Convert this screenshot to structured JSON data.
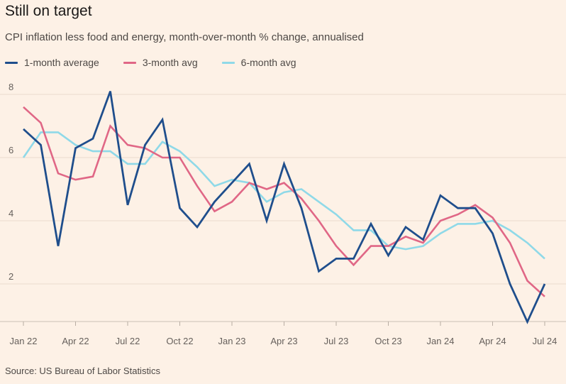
{
  "title": "Still on target",
  "subtitle": "CPI inflation less food and energy, month-over-month % change, annualised",
  "source": "Source: US Bureau of Labor Statistics",
  "chart_data": {
    "type": "line",
    "title": "Still on target",
    "subtitle": "CPI inflation less food and energy, month-over-month % change, annualised",
    "xlabel": "",
    "ylabel": "",
    "grid": true,
    "legend_position": "top-left",
    "ylim": [
      0.8,
      8.5
    ],
    "yticks": [
      "2",
      "4",
      "6",
      "8"
    ],
    "yticks_values": [
      2,
      4,
      6,
      8
    ],
    "xtick_labels": [
      "Jan 22",
      "Apr 22",
      "Jul 22",
      "Oct 22",
      "Jan 23",
      "Apr 23",
      "Jul 23",
      "Oct 23",
      "Jan 24",
      "Apr 24",
      "Jul 24"
    ],
    "x": [
      "Jan 22",
      "Feb 22",
      "Mar 22",
      "Apr 22",
      "May 22",
      "Jun 22",
      "Jul 22",
      "Aug 22",
      "Sep 22",
      "Oct 22",
      "Nov 22",
      "Dec 22",
      "Jan 23",
      "Feb 23",
      "Mar 23",
      "Apr 23",
      "May 23",
      "Jun 23",
      "Jul 23",
      "Aug 23",
      "Sep 23",
      "Oct 23",
      "Nov 23",
      "Dec 23",
      "Jan 24",
      "Feb 24",
      "Mar 24",
      "Apr 24",
      "May 24",
      "Jun 24",
      "Jul 24"
    ],
    "series": [
      {
        "name": "1-month average",
        "color": "#1f4e8c",
        "values": [
          6.9,
          6.4,
          3.2,
          6.3,
          6.6,
          8.1,
          4.5,
          6.4,
          7.2,
          4.4,
          3.8,
          4.6,
          5.2,
          5.8,
          4.0,
          5.8,
          4.4,
          2.4,
          2.8,
          2.8,
          3.9,
          2.9,
          3.8,
          3.4,
          4.8,
          4.4,
          4.4,
          3.6,
          2.0,
          0.8,
          2.0
        ]
      },
      {
        "name": "3-month avg",
        "color": "#e06786",
        "values": [
          7.6,
          7.1,
          5.5,
          5.3,
          5.4,
          7.0,
          6.4,
          6.3,
          6.0,
          6.0,
          5.1,
          4.3,
          4.6,
          5.2,
          5.0,
          5.2,
          4.7,
          4.0,
          3.2,
          2.6,
          3.2,
          3.2,
          3.5,
          3.3,
          4.0,
          4.2,
          4.5,
          4.1,
          3.3,
          2.1,
          1.6
        ]
      },
      {
        "name": "6-month avg",
        "color": "#8fd9e8",
        "values": [
          6.0,
          6.8,
          6.8,
          6.4,
          6.2,
          6.2,
          5.8,
          5.8,
          6.5,
          6.2,
          5.7,
          5.1,
          5.3,
          5.2,
          4.6,
          4.9,
          5.0,
          4.6,
          4.2,
          3.7,
          3.7,
          3.2,
          3.1,
          3.2,
          3.6,
          3.9,
          3.9,
          4.0,
          3.7,
          3.3,
          2.8
        ]
      }
    ]
  }
}
